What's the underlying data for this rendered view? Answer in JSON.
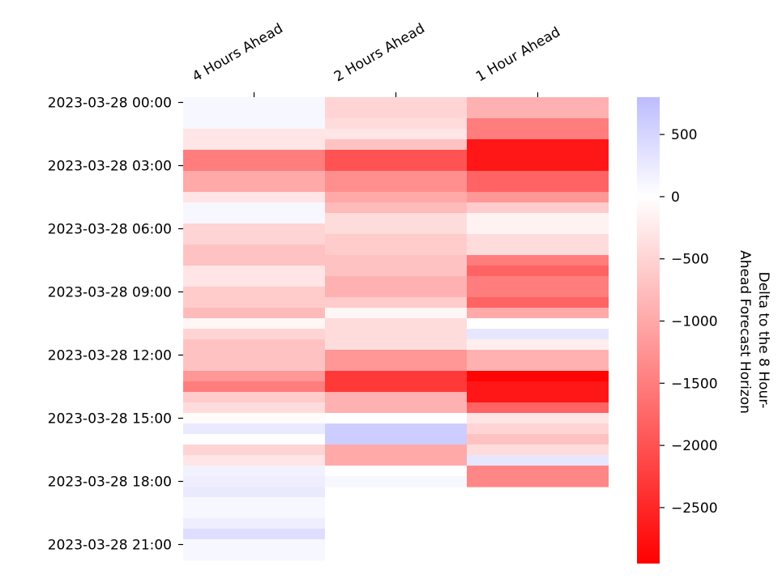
{
  "chart_data": {
    "type": "heatmap",
    "title": "",
    "xlabel": "",
    "ylabel": "",
    "columns": [
      "4 Hours Ahead",
      "2 Hours Ahead",
      "1 Hour Ahead"
    ],
    "row_tick_labels": [
      "2023-03-28 00:00",
      "2023-03-28 03:00",
      "2023-03-28 06:00",
      "2023-03-28 09:00",
      "2023-03-28 12:00",
      "2023-03-28 15:00",
      "2023-03-28 18:00",
      "2023-03-28 21:00"
    ],
    "row_start": "2023-03-28 00:00",
    "row_step_minutes": 30,
    "colorbar": {
      "label": "Delta to the 8 Hour-Ahead Forecast Horizon",
      "label_lines": [
        "Delta to the 8 Hour-",
        "Ahead Forecast Horizon"
      ],
      "ticks": [
        500,
        0,
        -500,
        -1000,
        -1500,
        -2000,
        -2500
      ],
      "tick_labels": [
        "500",
        "0",
        "−500",
        "−1000",
        "−1500",
        "−2000",
        "−2500"
      ],
      "range": [
        -2950,
        800
      ],
      "colors": {
        "low": "#ff0000",
        "mid": "#ffffff",
        "high": "#bcbcff"
      }
    },
    "series": [
      {
        "name": "4 Hours Ahead",
        "values": [
          100,
          100,
          100,
          -300,
          -300,
          -1500,
          -1500,
          -1000,
          -1000,
          -300,
          100,
          100,
          -500,
          -500,
          -700,
          -700,
          -300,
          -300,
          -600,
          -600,
          -800,
          -100,
          -500,
          -700,
          -700,
          -700,
          -1200,
          -1500,
          -600,
          -400,
          -50,
          250,
          0,
          -500,
          -300,
          150,
          200,
          250,
          100,
          100,
          200,
          400,
          100,
          100
        ],
        "notes": "44 half-hourly values from 00:00 to 21:30"
      },
      {
        "name": "2 Hours Ahead",
        "values": [
          -500,
          -500,
          -400,
          -300,
          -700,
          -2000,
          -2000,
          -1300,
          -1300,
          -1000,
          -800,
          -400,
          -400,
          -600,
          -600,
          -700,
          -700,
          -900,
          -900,
          -600,
          -100,
          -400,
          -400,
          -400,
          -1200,
          -1200,
          -2300,
          -2300,
          -900,
          -900,
          0,
          600,
          600,
          -1000,
          -1000,
          0,
          100
        ],
        "notes": "37 half-hourly values from 00:00 to 18:00"
      },
      {
        "name": "1 Hour Ahead",
        "values": [
          -900,
          -900,
          -1500,
          -1500,
          -2700,
          -2700,
          -2700,
          -1800,
          -1800,
          -1200,
          -600,
          -150,
          -150,
          -400,
          -400,
          -1500,
          -1800,
          -1500,
          -1500,
          -1800,
          -1000,
          0,
          300,
          -200,
          -900,
          -900,
          -2900,
          -2700,
          -2700,
          -1800,
          -300,
          -500,
          -700,
          -400,
          300,
          -1400,
          -1400
        ],
        "notes": "37 half-hourly values from 00:00 to 18:00"
      }
    ]
  }
}
